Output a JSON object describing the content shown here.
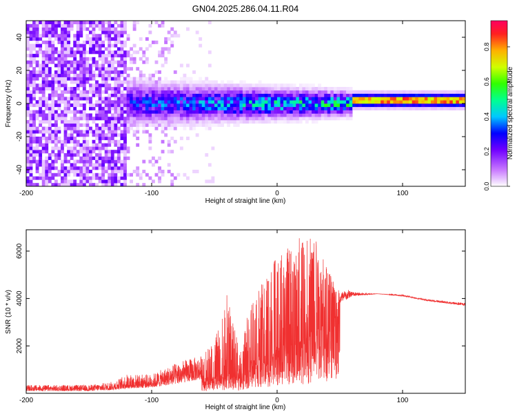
{
  "title": "GN04.2025.286.04.11.R04",
  "chart_data": [
    {
      "type": "heatmap",
      "xlabel": "Height of straight line (km)",
      "ylabel": "Frequency (Hz)",
      "xlim": [
        -200,
        150
      ],
      "ylim": [
        -50,
        50
      ],
      "x_ticks": [
        -200,
        -100,
        0,
        100
      ],
      "y_ticks": [
        -40,
        -20,
        0,
        20,
        40
      ],
      "colorbar": {
        "label": "Normalized spectral amplitude",
        "range": [
          0,
          0.95
        ],
        "ticks": [
          0,
          0.2,
          0.4,
          0.6,
          0.8
        ]
      },
      "regions": [
        {
          "x_range": [
            -200,
            -120
          ],
          "description": "broadband noise",
          "amplitude": 0.15
        },
        {
          "x_range": [
            -120,
            -80
          ],
          "description": "sparse noise",
          "amplitude": 0.05
        },
        {
          "x_range": [
            -120,
            60
          ],
          "freq_center": 0,
          "bandwidth_hz": 10,
          "amplitude": 0.45
        },
        {
          "x_range": [
            60,
            150
          ],
          "freq_center": 2,
          "bandwidth_hz": 4,
          "amplitude": 0.9
        }
      ]
    },
    {
      "type": "line",
      "xlabel": "Height of straight line (km)",
      "ylabel": "SNR (10 * v/v)",
      "xlim": [
        -200,
        150
      ],
      "ylim": [
        0,
        6900
      ],
      "x_ticks": [
        -200,
        -100,
        0,
        100
      ],
      "y_ticks": [
        2000,
        4000,
        6000
      ],
      "color": "#f03030",
      "envelope": {
        "x": [
          -200,
          -150,
          -130,
          -120,
          -100,
          -80,
          -60,
          -50,
          -40,
          -30,
          -20,
          -10,
          0,
          10,
          20,
          30,
          40,
          50,
          60,
          80,
          100,
          120,
          150
        ],
        "base": [
          100,
          100,
          150,
          200,
          250,
          400,
          600,
          700,
          900,
          800,
          1500,
          1600,
          2000,
          2200,
          2500,
          2800,
          3200,
          3800,
          4100,
          4200,
          4100,
          3900,
          3700
        ],
        "peak": [
          350,
          350,
          500,
          800,
          800,
          1300,
          1600,
          2200,
          4200,
          1800,
          4200,
          4800,
          5800,
          6200,
          6800,
          6600,
          5400,
          4300,
          4400,
          4200,
          4200,
          4000,
          3900
        ]
      }
    }
  ]
}
